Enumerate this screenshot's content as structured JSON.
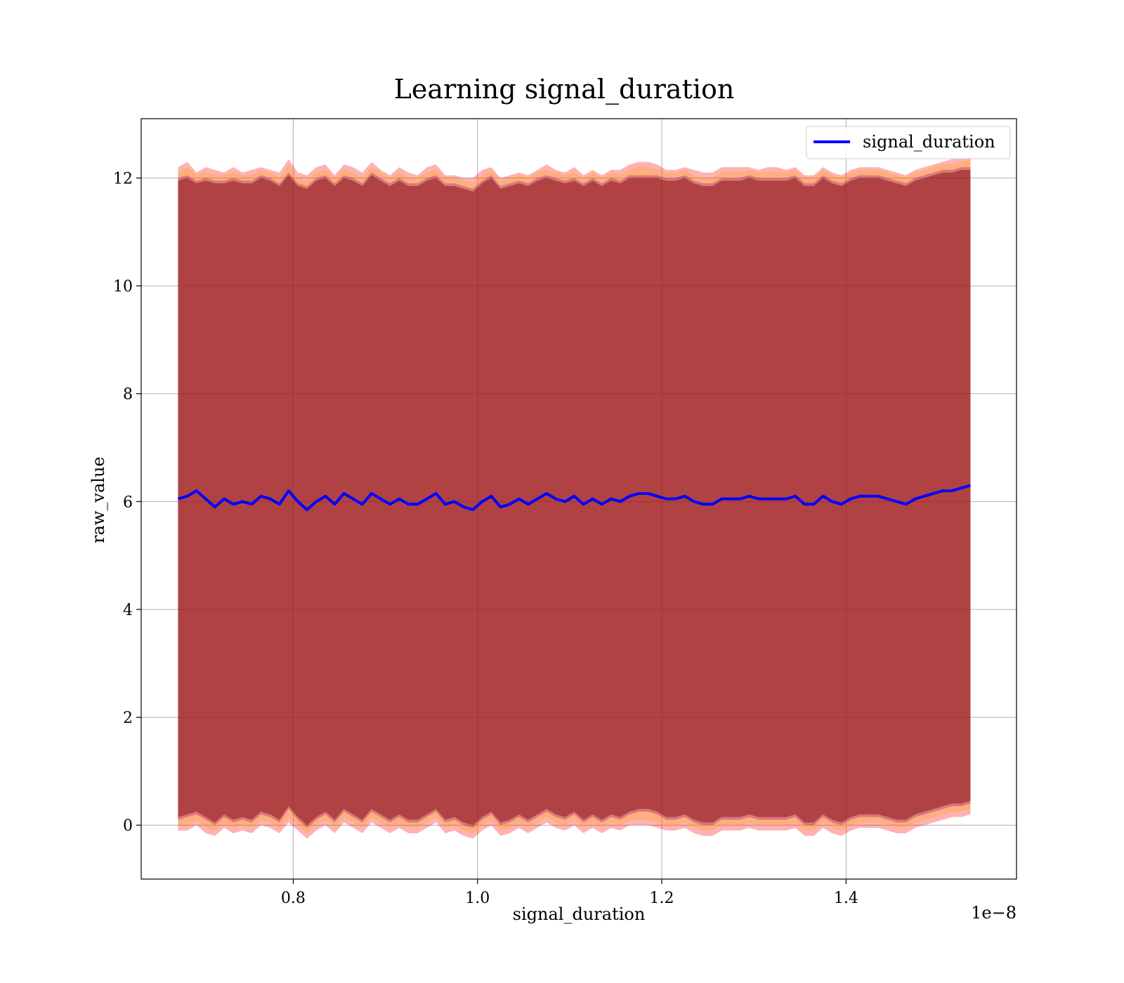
{
  "chart_data": {
    "type": "line",
    "title": "Learning signal_duration",
    "xlabel": "signal_duration",
    "ylabel": "raw_value",
    "x_offset_text": "1e−8",
    "xlim": [
      0.635,
      1.585
    ],
    "ylim": [
      -1.0,
      13.1
    ],
    "x_ticks": [
      0.8,
      1.0,
      1.2,
      1.4
    ],
    "x_tick_labels": [
      "0.8",
      "1.0",
      "1.2",
      "1.4"
    ],
    "y_ticks": [
      0,
      2,
      4,
      6,
      8,
      10,
      12
    ],
    "y_tick_labels": [
      "0",
      "2",
      "4",
      "6",
      "8",
      "10",
      "12"
    ],
    "grid": true,
    "legend_position": "top-right",
    "x": [
      0.675,
      0.685,
      0.695,
      0.705,
      0.715,
      0.725,
      0.735,
      0.745,
      0.755,
      0.765,
      0.775,
      0.785,
      0.795,
      0.805,
      0.815,
      0.825,
      0.835,
      0.845,
      0.855,
      0.865,
      0.875,
      0.885,
      0.895,
      0.905,
      0.915,
      0.925,
      0.935,
      0.945,
      0.955,
      0.965,
      0.975,
      0.985,
      0.995,
      1.005,
      1.015,
      1.025,
      1.035,
      1.045,
      1.055,
      1.065,
      1.075,
      1.085,
      1.095,
      1.105,
      1.115,
      1.125,
      1.135,
      1.145,
      1.155,
      1.165,
      1.175,
      1.185,
      1.195,
      1.205,
      1.215,
      1.225,
      1.235,
      1.245,
      1.255,
      1.265,
      1.275,
      1.285,
      1.295,
      1.305,
      1.315,
      1.325,
      1.335,
      1.345,
      1.355,
      1.365,
      1.375,
      1.385,
      1.395,
      1.405,
      1.415,
      1.425,
      1.435,
      1.445,
      1.455,
      1.465,
      1.475,
      1.485,
      1.495,
      1.505,
      1.515,
      1.525,
      1.535
    ],
    "series": [
      {
        "name": "signal_duration",
        "color": "#0000ff",
        "values": [
          6.05,
          6.1,
          6.2,
          6.05,
          5.9,
          6.05,
          5.95,
          6.0,
          5.95,
          6.1,
          6.05,
          5.95,
          6.2,
          6.0,
          5.85,
          6.0,
          6.1,
          5.95,
          6.15,
          6.05,
          5.95,
          6.15,
          6.05,
          5.95,
          6.05,
          5.95,
          5.95,
          6.05,
          6.15,
          5.95,
          6.0,
          5.9,
          5.85,
          6.0,
          6.1,
          5.9,
          5.95,
          6.05,
          5.95,
          6.05,
          6.15,
          6.05,
          6.0,
          6.1,
          5.95,
          6.05,
          5.95,
          6.05,
          6.0,
          6.1,
          6.15,
          6.15,
          6.1,
          6.05,
          6.05,
          6.1,
          6.0,
          5.95,
          5.95,
          6.05,
          6.05,
          6.05,
          6.1,
          6.05,
          6.05,
          6.05,
          6.05,
          6.1,
          5.95,
          5.95,
          6.1,
          6.0,
          5.95,
          6.05,
          6.1,
          6.1,
          6.1,
          6.05,
          6.0,
          5.95,
          6.05,
          6.1,
          6.15,
          6.2,
          6.2,
          6.25,
          6.3
        ]
      }
    ],
    "bands": [
      {
        "color": "#ff0000",
        "opacity": 0.3,
        "upper": [
          12.2,
          12.3,
          12.1,
          12.2,
          12.15,
          12.1,
          12.2,
          12.1,
          12.15,
          12.2,
          12.15,
          12.1,
          12.35,
          12.1,
          12.05,
          12.2,
          12.25,
          12.05,
          12.25,
          12.2,
          12.1,
          12.3,
          12.15,
          12.05,
          12.2,
          12.1,
          12.05,
          12.2,
          12.25,
          12.05,
          12.05,
          12.0,
          12.0,
          12.15,
          12.2,
          12.0,
          12.05,
          12.1,
          12.05,
          12.15,
          12.25,
          12.15,
          12.1,
          12.2,
          12.05,
          12.15,
          12.05,
          12.15,
          12.15,
          12.25,
          12.3,
          12.3,
          12.25,
          12.15,
          12.15,
          12.2,
          12.15,
          12.1,
          12.1,
          12.2,
          12.2,
          12.2,
          12.2,
          12.15,
          12.2,
          12.2,
          12.15,
          12.2,
          12.05,
          12.05,
          12.2,
          12.1,
          12.05,
          12.15,
          12.2,
          12.2,
          12.2,
          12.15,
          12.1,
          12.05,
          12.15,
          12.2,
          12.25,
          12.3,
          12.35,
          12.35,
          12.4
        ],
        "lower": [
          -0.1,
          -0.1,
          0.0,
          -0.15,
          -0.2,
          -0.05,
          -0.15,
          -0.1,
          -0.15,
          0.0,
          -0.05,
          -0.15,
          0.05,
          -0.1,
          -0.25,
          -0.1,
          0.0,
          -0.15,
          0.05,
          -0.05,
          -0.15,
          0.05,
          -0.05,
          -0.15,
          -0.05,
          -0.15,
          -0.15,
          -0.05,
          0.05,
          -0.15,
          -0.1,
          -0.2,
          -0.25,
          -0.1,
          0.0,
          -0.2,
          -0.15,
          -0.05,
          -0.15,
          -0.05,
          0.05,
          -0.05,
          -0.1,
          0.0,
          -0.15,
          -0.05,
          -0.15,
          -0.05,
          -0.1,
          0.0,
          0.0,
          0.0,
          -0.05,
          -0.1,
          -0.1,
          -0.05,
          -0.15,
          -0.2,
          -0.2,
          -0.1,
          -0.1,
          -0.1,
          -0.05,
          -0.1,
          -0.1,
          -0.1,
          -0.1,
          -0.05,
          -0.2,
          -0.2,
          -0.05,
          -0.15,
          -0.2,
          -0.1,
          -0.05,
          -0.05,
          -0.05,
          -0.1,
          -0.15,
          -0.15,
          -0.05,
          0.0,
          0.05,
          0.1,
          0.15,
          0.15,
          0.2
        ]
      },
      {
        "color": "#ffa500",
        "opacity": 0.3,
        "upper": [
          12.1,
          12.2,
          12.05,
          12.1,
          12.05,
          12.05,
          12.1,
          12.05,
          12.05,
          12.15,
          12.1,
          12.0,
          12.25,
          12.0,
          11.95,
          12.1,
          12.15,
          12.0,
          12.15,
          12.1,
          12.0,
          12.2,
          12.1,
          12.0,
          12.1,
          12.0,
          12.0,
          12.1,
          12.15,
          12.0,
          12.0,
          11.95,
          11.9,
          12.05,
          12.15,
          11.95,
          12.0,
          12.05,
          12.0,
          12.1,
          12.15,
          12.1,
          12.05,
          12.1,
          12.0,
          12.1,
          12.0,
          12.1,
          12.05,
          12.15,
          12.2,
          12.2,
          12.15,
          12.1,
          12.1,
          12.15,
          12.05,
          12.0,
          12.0,
          12.1,
          12.1,
          12.1,
          12.15,
          12.1,
          12.1,
          12.1,
          12.1,
          12.15,
          12.0,
          12.0,
          12.15,
          12.05,
          12.0,
          12.1,
          12.15,
          12.15,
          12.15,
          12.1,
          12.05,
          12.0,
          12.1,
          12.15,
          12.2,
          12.25,
          12.25,
          12.3,
          12.35
        ],
        "lower": [
          0.0,
          0.0,
          0.1,
          -0.05,
          -0.1,
          0.05,
          -0.05,
          0.0,
          -0.05,
          0.1,
          0.05,
          -0.05,
          0.15,
          0.0,
          -0.15,
          0.0,
          0.1,
          -0.05,
          0.15,
          0.05,
          -0.05,
          0.15,
          0.05,
          -0.05,
          0.05,
          -0.05,
          -0.05,
          0.05,
          0.15,
          -0.05,
          0.0,
          -0.1,
          -0.15,
          0.0,
          0.1,
          -0.1,
          -0.05,
          0.05,
          -0.05,
          0.05,
          0.15,
          0.05,
          0.0,
          0.1,
          -0.05,
          0.05,
          -0.05,
          0.05,
          0.0,
          0.1,
          0.1,
          0.1,
          0.05,
          0.0,
          0.0,
          0.05,
          -0.05,
          -0.1,
          -0.1,
          0.0,
          0.0,
          0.0,
          0.05,
          0.0,
          0.0,
          0.0,
          0.0,
          0.05,
          -0.1,
          -0.1,
          0.05,
          -0.05,
          -0.1,
          0.0,
          0.05,
          0.05,
          0.05,
          0.0,
          -0.05,
          -0.05,
          0.05,
          0.1,
          0.15,
          0.2,
          0.25,
          0.25,
          0.3
        ]
      },
      {
        "color": "#800080",
        "opacity": 0.3,
        "upper": [
          12.0,
          12.05,
          11.95,
          12.0,
          11.95,
          11.95,
          12.0,
          11.95,
          11.95,
          12.05,
          12.0,
          11.9,
          12.1,
          11.9,
          11.85,
          12.0,
          12.05,
          11.9,
          12.05,
          12.0,
          11.9,
          12.1,
          12.0,
          11.9,
          12.0,
          11.9,
          11.9,
          12.0,
          12.05,
          11.9,
          11.9,
          11.85,
          11.8,
          11.95,
          12.05,
          11.85,
          11.9,
          11.95,
          11.9,
          12.0,
          12.05,
          12.0,
          11.95,
          12.0,
          11.9,
          12.0,
          11.9,
          12.0,
          11.95,
          12.05,
          12.05,
          12.05,
          12.05,
          12.0,
          12.0,
          12.05,
          11.95,
          11.9,
          11.9,
          12.0,
          12.0,
          12.0,
          12.05,
          12.0,
          12.0,
          12.0,
          12.0,
          12.05,
          11.9,
          11.9,
          12.05,
          11.95,
          11.9,
          12.0,
          12.05,
          12.05,
          12.05,
          12.0,
          11.95,
          11.9,
          12.0,
          12.05,
          12.1,
          12.15,
          12.15,
          12.2,
          12.2
        ],
        "lower": [
          0.1,
          0.15,
          0.2,
          0.1,
          0.0,
          0.15,
          0.05,
          0.1,
          0.05,
          0.2,
          0.15,
          0.05,
          0.3,
          0.1,
          -0.05,
          0.1,
          0.2,
          0.05,
          0.25,
          0.15,
          0.05,
          0.25,
          0.15,
          0.05,
          0.15,
          0.05,
          0.05,
          0.15,
          0.25,
          0.05,
          0.1,
          0.0,
          -0.05,
          0.1,
          0.2,
          0.0,
          0.05,
          0.15,
          0.05,
          0.15,
          0.25,
          0.15,
          0.1,
          0.2,
          0.05,
          0.15,
          0.05,
          0.15,
          0.1,
          0.2,
          0.25,
          0.25,
          0.2,
          0.1,
          0.1,
          0.15,
          0.05,
          0.0,
          0.0,
          0.1,
          0.1,
          0.1,
          0.15,
          0.1,
          0.1,
          0.1,
          0.1,
          0.15,
          0.0,
          0.0,
          0.15,
          0.05,
          0.0,
          0.1,
          0.15,
          0.15,
          0.15,
          0.1,
          0.05,
          0.05,
          0.15,
          0.2,
          0.25,
          0.3,
          0.35,
          0.35,
          0.4
        ]
      },
      {
        "color": "#800000",
        "opacity": 0.45,
        "upper": [
          11.95,
          12.0,
          11.9,
          11.95,
          11.9,
          11.9,
          11.95,
          11.9,
          11.9,
          12.0,
          11.95,
          11.85,
          12.05,
          11.85,
          11.8,
          11.95,
          12.0,
          11.85,
          12.0,
          11.95,
          11.85,
          12.05,
          11.95,
          11.85,
          11.95,
          11.85,
          11.85,
          11.95,
          12.0,
          11.85,
          11.85,
          11.8,
          11.75,
          11.9,
          12.0,
          11.8,
          11.85,
          11.9,
          11.85,
          11.95,
          12.0,
          11.95,
          11.9,
          11.95,
          11.85,
          11.95,
          11.85,
          11.95,
          11.9,
          12.0,
          12.0,
          12.0,
          12.0,
          11.95,
          11.95,
          12.0,
          11.9,
          11.85,
          11.85,
          11.95,
          11.95,
          11.95,
          12.0,
          11.95,
          11.95,
          11.95,
          11.95,
          12.0,
          11.85,
          11.85,
          12.0,
          11.9,
          11.85,
          11.95,
          12.0,
          12.0,
          12.0,
          11.95,
          11.9,
          11.85,
          11.95,
          12.0,
          12.05,
          12.1,
          12.1,
          12.15,
          12.15
        ],
        "lower": [
          0.15,
          0.2,
          0.25,
          0.15,
          0.05,
          0.2,
          0.1,
          0.15,
          0.1,
          0.25,
          0.2,
          0.1,
          0.35,
          0.15,
          0.0,
          0.15,
          0.25,
          0.1,
          0.3,
          0.2,
          0.1,
          0.3,
          0.2,
          0.1,
          0.2,
          0.1,
          0.1,
          0.2,
          0.3,
          0.1,
          0.15,
          0.05,
          0.0,
          0.15,
          0.25,
          0.05,
          0.1,
          0.2,
          0.1,
          0.2,
          0.3,
          0.2,
          0.15,
          0.25,
          0.1,
          0.2,
          0.1,
          0.2,
          0.15,
          0.25,
          0.3,
          0.3,
          0.25,
          0.15,
          0.15,
          0.2,
          0.1,
          0.05,
          0.05,
          0.15,
          0.15,
          0.15,
          0.2,
          0.15,
          0.15,
          0.15,
          0.15,
          0.2,
          0.05,
          0.05,
          0.2,
          0.1,
          0.05,
          0.15,
          0.2,
          0.2,
          0.2,
          0.15,
          0.1,
          0.1,
          0.2,
          0.25,
          0.3,
          0.35,
          0.4,
          0.4,
          0.45
        ]
      }
    ]
  }
}
